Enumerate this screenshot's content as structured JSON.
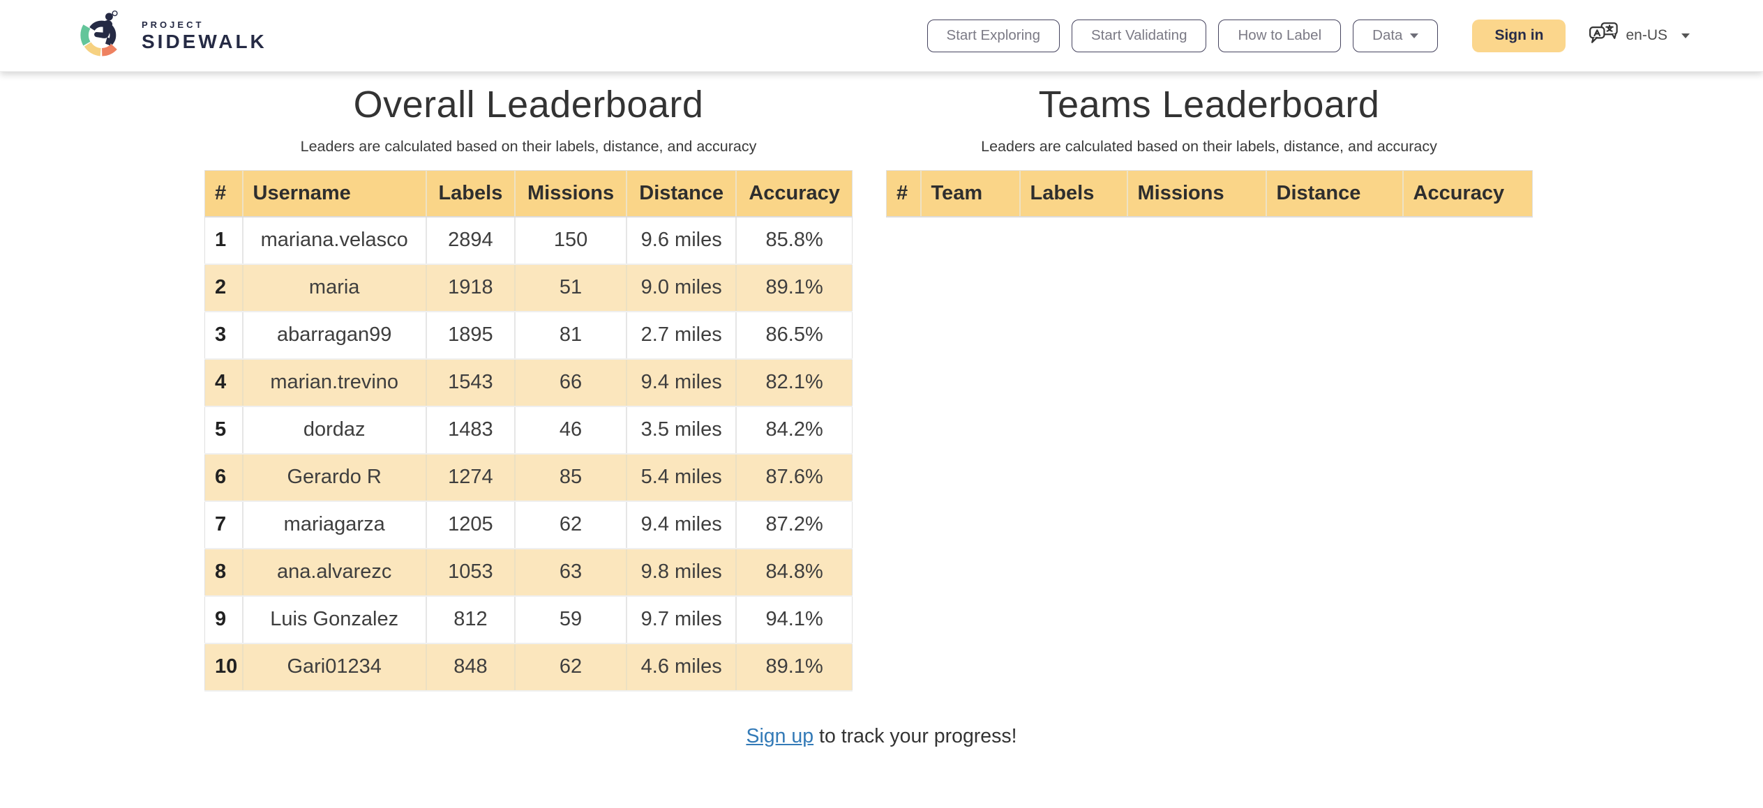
{
  "navbar": {
    "logo": {
      "project": "PROJECT",
      "sidewalk": "SIDEWALK"
    },
    "buttons": [
      {
        "label": "Start Exploring"
      },
      {
        "label": "Start Validating"
      },
      {
        "label": "How to Label"
      },
      {
        "label": "Data"
      }
    ],
    "sign_in_label": "Sign in",
    "language": {
      "code": "en-US",
      "icon": "translate-icon"
    }
  },
  "overall": {
    "title": "Overall Leaderboard",
    "subtitle": "Leaders are calculated based on their labels, distance, and accuracy",
    "columns": [
      "#",
      "Username",
      "Labels",
      "Missions",
      "Distance",
      "Accuracy"
    ],
    "rows": [
      [
        "1",
        "mariana.velasco",
        "2894",
        "150",
        "9.6 miles",
        "85.8%"
      ],
      [
        "2",
        "maria",
        "1918",
        "51",
        "9.0 miles",
        "89.1%"
      ],
      [
        "3",
        "abarragan99",
        "1895",
        "81",
        "2.7 miles",
        "86.5%"
      ],
      [
        "4",
        "marian.trevino",
        "1543",
        "66",
        "9.4 miles",
        "82.1%"
      ],
      [
        "5",
        "dordaz",
        "1483",
        "46",
        "3.5 miles",
        "84.2%"
      ],
      [
        "6",
        "Gerardo R",
        "1274",
        "85",
        "5.4 miles",
        "87.6%"
      ],
      [
        "7",
        "mariagarza",
        "1205",
        "62",
        "9.4 miles",
        "87.2%"
      ],
      [
        "8",
        "ana.alvarezc",
        "1053",
        "63",
        "9.8 miles",
        "84.8%"
      ],
      [
        "9",
        "Luis Gonzalez",
        "812",
        "59",
        "9.7 miles",
        "94.1%"
      ],
      [
        "10",
        "Gari01234",
        "848",
        "62",
        "4.6 miles",
        "89.1%"
      ]
    ]
  },
  "teams": {
    "title": "Teams Leaderboard",
    "subtitle": "Leaders are calculated based on their labels, distance, and accuracy",
    "columns": [
      "#",
      "Team",
      "Labels",
      "Missions",
      "Distance",
      "Accuracy"
    ],
    "rows": []
  },
  "footer": {
    "signup_link": "Sign up",
    "signup_rest": " to track your progress!"
  },
  "colors": {
    "brand_navy": "#252a44",
    "header_bg": "#fad588",
    "alt_row_bg": "#fbe6bd",
    "signin_bg": "#fbd68c",
    "link_blue": "#337ab7",
    "logo_green": "#63c59a",
    "logo_yellow": "#f6d181",
    "logo_orange": "#ee8160"
  }
}
